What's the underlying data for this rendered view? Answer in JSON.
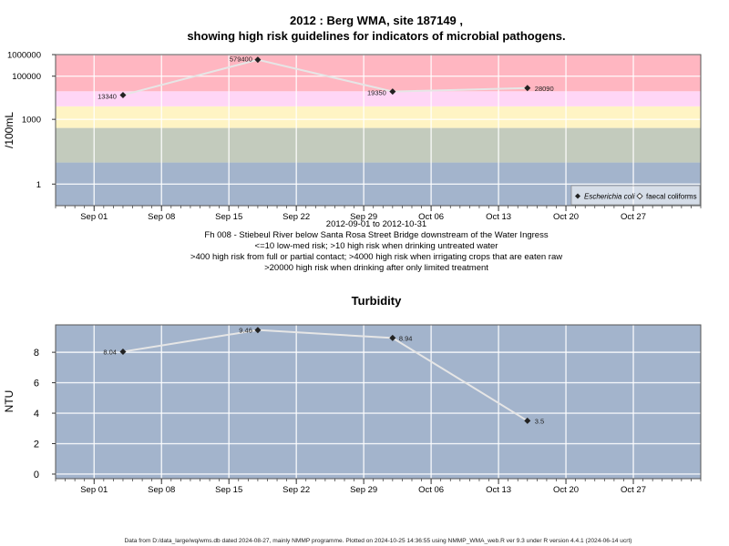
{
  "top": {
    "title_line1": "2012 : Berg WMA, site 187149 ,",
    "title_line2": "showing high risk guidelines for indicators of microbial pathogens.",
    "ylabel": "/100mL",
    "date_range": "2012-09-01 to 2012-10-31",
    "site_desc": "Fh 008 - Stiebeul River below Santa Rosa Street Bridge downstream of the Water Ingress",
    "guideline_1": "<=10 low-med risk; >10 high risk when drinking untreated water",
    "guideline_2": ">400 high risk from full or partial contact; >4000 high risk when irrigating crops that are eaten raw",
    "guideline_3": ">20000 high risk when drinking after only limited treatment",
    "legend": [
      {
        "name": "Escherichia coli",
        "marker": "diamond-filled"
      },
      {
        "name": "faecal coliforms",
        "marker": "diamond-open"
      }
    ],
    "y_ticks": [
      "1000000",
      "100000",
      "1000",
      "1"
    ],
    "band_colors": {
      "red": "#ffb6c1",
      "pink": "#ffd6f6",
      "yellow": "#fff4c4",
      "green": "#c3cbbd",
      "blue": "#a3b4cc"
    }
  },
  "bottom": {
    "title": "Turbidity",
    "ylabel": "NTU",
    "y_ticks": [
      "0",
      "2",
      "4",
      "6",
      "8"
    ],
    "bg_color": "#a3b4cc"
  },
  "x_ticks": [
    "Sep 01",
    "Sep 08",
    "Sep 15",
    "Sep 22",
    "Sep 29",
    "Oct 06",
    "Oct 13",
    "Oct 20",
    "Oct 27"
  ],
  "footer": "Data from D:/data_large/wq/wms.db dated 2024-08-27, mainly NMMP programme. Plotted on 2024-10-25 14:36:55 using NMMP_WMA_web.R ver 9.3 under R version 4.4.1 (2024-06-14 ucrt)",
  "chart_data": [
    {
      "type": "line",
      "ylabel": "/100mL",
      "yscale": "log",
      "xlim": [
        "2012-08-28",
        "2012-11-03"
      ],
      "ylim": [
        0.1,
        1000000
      ],
      "grid": true,
      "legend_position": "bottom-right",
      "series": [
        {
          "name": "Escherichia coli",
          "x": [
            "2012-09-04",
            "2012-09-18",
            "2012-10-02",
            "2012-10-16"
          ],
          "values": [
            13340,
            579400,
            19350,
            28090
          ],
          "labels": [
            "13340",
            "579400",
            "19350",
            "28090"
          ]
        }
      ],
      "risk_bands": [
        {
          "from": 0.1,
          "to": 10,
          "color": "#a3b4cc"
        },
        {
          "from": 10,
          "to": 400,
          "color": "#c3cbbd"
        },
        {
          "from": 400,
          "to": 4000,
          "color": "#fff4c4"
        },
        {
          "from": 4000,
          "to": 20000,
          "color": "#ffd6f6"
        },
        {
          "from": 20000,
          "to": 1000000,
          "color": "#ffb6c1"
        }
      ]
    },
    {
      "type": "line",
      "title": "Turbidity",
      "ylabel": "NTU",
      "xlim": [
        "2012-08-28",
        "2012-11-03"
      ],
      "ylim": [
        -0.3,
        9.8
      ],
      "grid": true,
      "series": [
        {
          "x": [
            "2012-09-04",
            "2012-09-18",
            "2012-10-02",
            "2012-10-16"
          ],
          "values": [
            8.04,
            9.46,
            8.94,
            3.5
          ],
          "labels": [
            "8.04",
            "9.46",
            "8.94",
            "3.5"
          ]
        }
      ]
    }
  ]
}
